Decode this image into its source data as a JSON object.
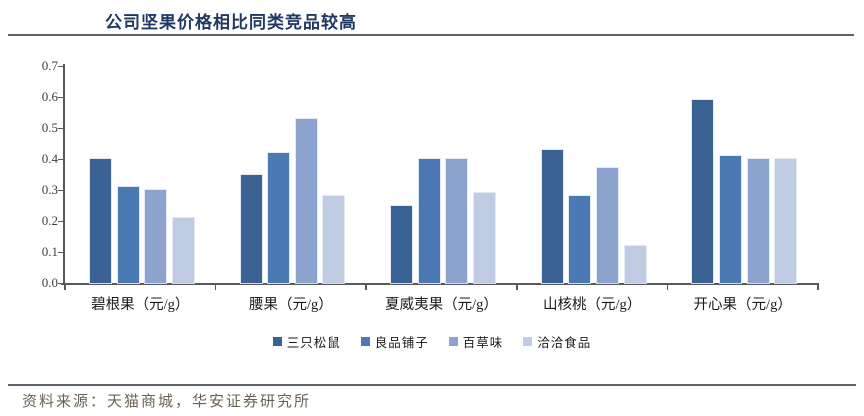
{
  "header": {
    "title": "公司坚果价格相比同类竞品较高"
  },
  "footer": {
    "source_label": "资料来源：天猫商城，华安证券研究所"
  },
  "colors": {
    "title_text": "#1F3864",
    "rule": "#5F6368",
    "axis": "#595959",
    "tick_label": "#404040",
    "source_text": "#6B6355",
    "series": [
      "#3A6295",
      "#4A79B4",
      "#8BA3CD",
      "#BFCCE4"
    ]
  },
  "chart_data": {
    "type": "bar",
    "title": "公司坚果价格相比同类竞品较高",
    "xlabel": "",
    "ylabel": "",
    "categories": [
      "碧根果（元/g）",
      "腰果（元/g）",
      "夏威夷果（元/g）",
      "山核桃（元/g）",
      "开心果（元/g）"
    ],
    "series": [
      {
        "name": "三只松鼠",
        "color": "#3A6295",
        "values": [
          0.4,
          0.35,
          0.25,
          0.43,
          0.59
        ]
      },
      {
        "name": "良品铺子",
        "color": "#4A79B4",
        "values": [
          0.31,
          0.42,
          0.4,
          0.28,
          0.41
        ]
      },
      {
        "name": "百草味",
        "color": "#8BA3CD",
        "values": [
          0.3,
          0.53,
          0.4,
          0.37,
          0.4
        ]
      },
      {
        "name": "洽洽食品",
        "color": "#BFCCE4",
        "values": [
          0.21,
          0.28,
          0.29,
          0.12,
          0.4
        ]
      }
    ],
    "ylim": [
      0,
      0.7
    ],
    "ytick_step": 0.1,
    "ytick_labels": [
      "0.0",
      "0.1",
      "0.2",
      "0.3",
      "0.4",
      "0.5",
      "0.6",
      "0.7"
    ],
    "grid": false,
    "legend_position": "bottom"
  }
}
